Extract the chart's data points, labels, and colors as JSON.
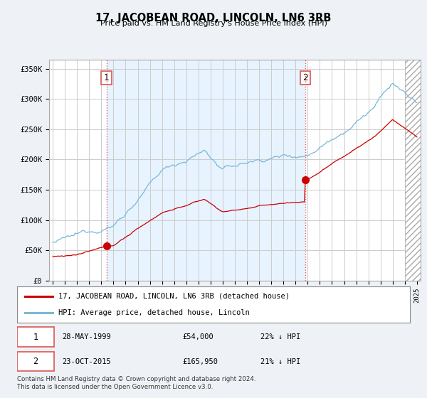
{
  "title": "17, JACOBEAN ROAD, LINCOLN, LN6 3RB",
  "subtitle": "Price paid vs. HM Land Registry's House Price Index (HPI)",
  "yticks": [
    0,
    50000,
    100000,
    150000,
    200000,
    250000,
    300000,
    350000
  ],
  "ytick_labels": [
    "£0",
    "£50K",
    "£100K",
    "£150K",
    "£200K",
    "£250K",
    "£300K",
    "£350K"
  ],
  "hpi_color": "#7ab8d8",
  "price_color": "#cc0000",
  "vline_color": "#e06060",
  "shade_color": "#ddeeff",
  "annotation1_year": 1999.42,
  "annotation2_year": 2015.8,
  "sale1_price": 54000,
  "sale2_price": 165950,
  "legend_red_label": "17, JACOBEAN ROAD, LINCOLN, LN6 3RB (detached house)",
  "legend_blue_label": "HPI: Average price, detached house, Lincoln",
  "table_rows": [
    {
      "num": "1",
      "date": "28-MAY-1999",
      "price": "£54,000",
      "pct": "22% ↓ HPI"
    },
    {
      "num": "2",
      "date": "23-OCT-2015",
      "price": "£165,950",
      "pct": "21% ↓ HPI"
    }
  ],
  "footer": "Contains HM Land Registry data © Crown copyright and database right 2024.\nThis data is licensed under the Open Government Licence v3.0.",
  "bg_color": "#eef2f7",
  "plot_bg_color": "#ffffff",
  "grid_color": "#cccccc"
}
